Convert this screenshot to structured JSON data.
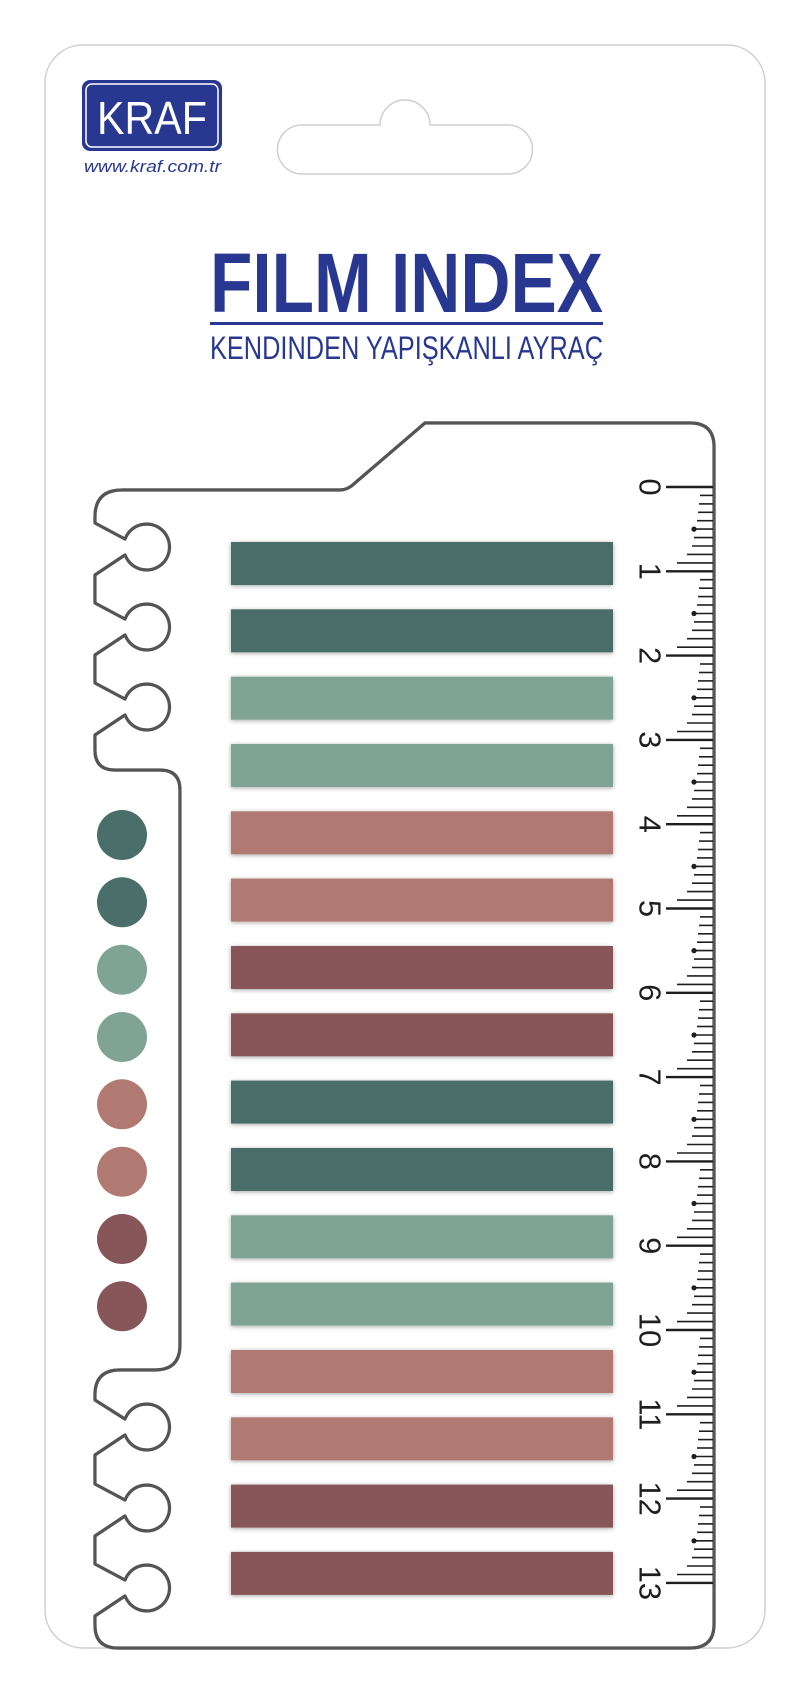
{
  "brand": {
    "logo_text": "KRAF",
    "website": "www.kraf.com.tr"
  },
  "product": {
    "title": "FILM INDEX",
    "subtitle": "KENDINDEN YAPIŞKANLI AYRAÇ"
  },
  "colors": {
    "brand_blue": "#283891",
    "dark_teal": "#4a6e6a",
    "light_teal": "#7fa496",
    "dusty_pink": "#b07a72",
    "dark_rose": "#875659",
    "outline": "#555555",
    "ruler_ink": "#1e1e1e"
  },
  "tabs": [
    "#4a6e6a",
    "#4a6e6a",
    "#7fa496",
    "#7fa496",
    "#b07a72",
    "#b07a72",
    "#875659",
    "#875659",
    "#4a6e6a",
    "#4a6e6a",
    "#7fa496",
    "#7fa496",
    "#b07a72",
    "#b07a72",
    "#875659",
    "#875659"
  ],
  "swatches": [
    "#4a6e6a",
    "#4a6e6a",
    "#7fa496",
    "#7fa496",
    "#b07a72",
    "#b07a72",
    "#875659",
    "#875659"
  ],
  "ruler": {
    "unit": "cm",
    "labels": [
      "0",
      "1",
      "2",
      "3",
      "4",
      "5",
      "6",
      "7",
      "8",
      "9",
      "10",
      "11",
      "12",
      "13"
    ]
  }
}
